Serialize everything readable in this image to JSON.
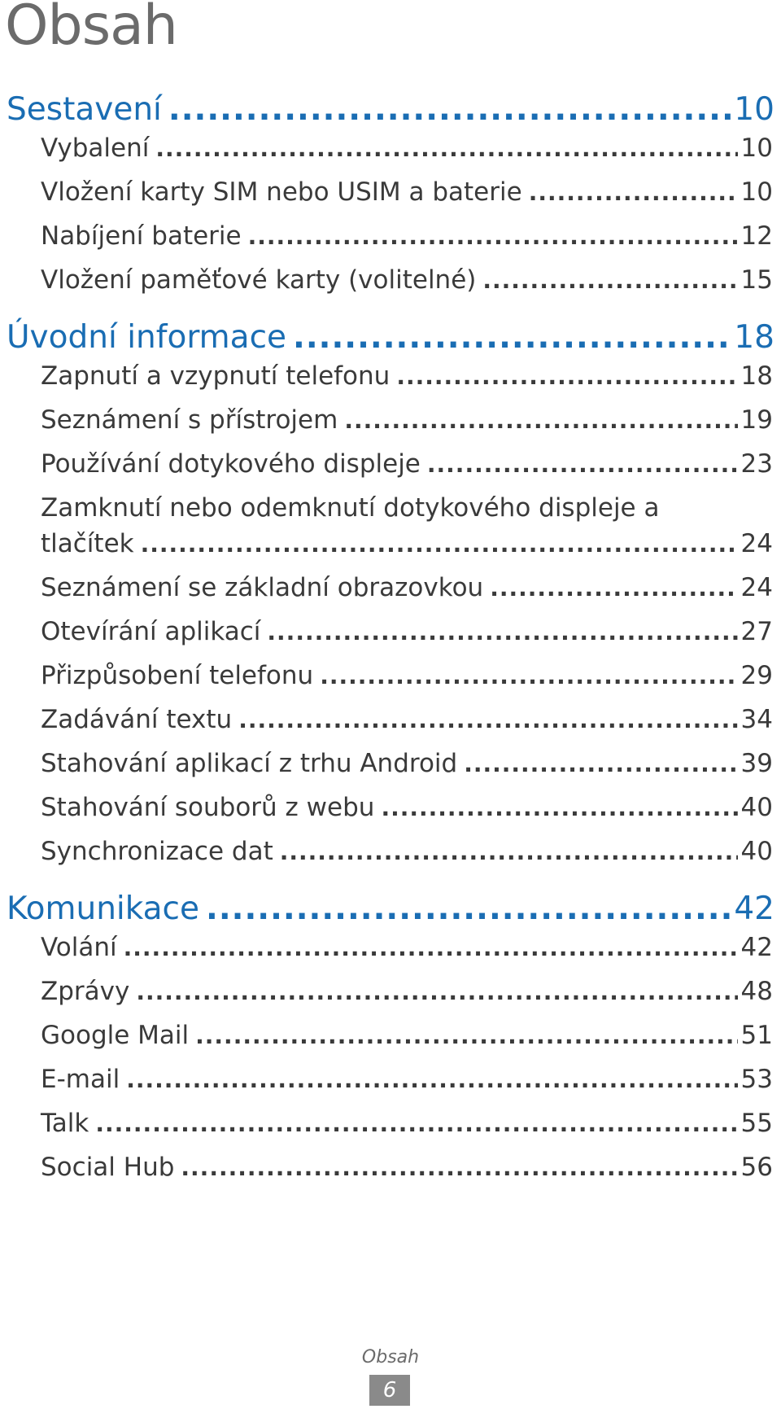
{
  "title": "Obsah",
  "sections": [
    {
      "heading": {
        "label": "Sestavení",
        "page": "10"
      },
      "items": [
        {
          "label": "Vybalení",
          "page": "10"
        },
        {
          "label": "Vložení karty SIM nebo USIM a baterie",
          "page": "10"
        },
        {
          "label": "Nabíjení baterie",
          "page": "12"
        },
        {
          "label": "Vložení paměťové karty (volitelné)",
          "page": "15"
        }
      ]
    },
    {
      "heading": {
        "label": "Úvodní informace",
        "page": "18"
      },
      "items": [
        {
          "label": "Zapnutí a vzypnutí telefonu",
          "page": "18"
        },
        {
          "label": "Seznámení s přístrojem",
          "page": "19"
        },
        {
          "label": "Používání dotykového displeje",
          "page": "23"
        },
        {
          "label_line1": "Zamknutí nebo odemknutí dotykového displeje a",
          "label_line2": "tlačítek",
          "page": "24"
        },
        {
          "label": "Seznámení se základní obrazovkou",
          "page": "24"
        },
        {
          "label": "Otevírání aplikací",
          "page": "27"
        },
        {
          "label": "Přizpůsobení telefonu",
          "page": "29"
        },
        {
          "label": "Zadávání textu",
          "page": "34"
        },
        {
          "label": "Stahování aplikací z trhu Android",
          "page": "39"
        },
        {
          "label": "Stahování souborů z webu",
          "page": "40"
        },
        {
          "label": "Synchronizace dat",
          "page": "40"
        }
      ]
    },
    {
      "heading": {
        "label": "Komunikace",
        "page": "42"
      },
      "items": [
        {
          "label": "Volání",
          "page": "42"
        },
        {
          "label": "Zprávy",
          "page": "48"
        },
        {
          "label": "Google Mail",
          "page": "51"
        },
        {
          "label": "E-mail",
          "page": "53"
        },
        {
          "label": "Talk",
          "page": "55"
        },
        {
          "label": "Social Hub",
          "page": "56"
        }
      ]
    }
  ],
  "footer": {
    "label": "Obsah",
    "page": "6"
  }
}
